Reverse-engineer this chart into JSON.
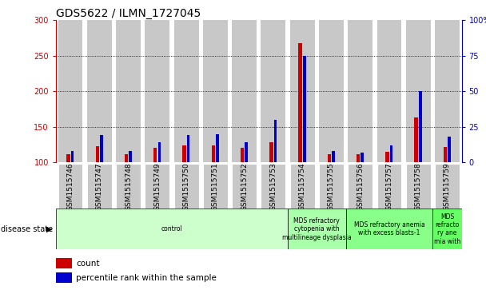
{
  "title": "GDS5622 / ILMN_1727045",
  "samples": [
    "GSM1515746",
    "GSM1515747",
    "GSM1515748",
    "GSM1515749",
    "GSM1515750",
    "GSM1515751",
    "GSM1515752",
    "GSM1515753",
    "GSM1515754",
    "GSM1515755",
    "GSM1515756",
    "GSM1515757",
    "GSM1515758",
    "GSM1515759"
  ],
  "count_values": [
    112,
    123,
    112,
    120,
    124,
    124,
    121,
    128,
    268,
    111,
    111,
    115,
    163,
    122
  ],
  "percentile_values": [
    8,
    19,
    8,
    14,
    19,
    20,
    14,
    30,
    75,
    8,
    7,
    12,
    50,
    18
  ],
  "ylim_left": [
    100,
    300
  ],
  "ylim_right": [
    0,
    100
  ],
  "yticks_left": [
    100,
    150,
    200,
    250,
    300
  ],
  "yticks_right": [
    0,
    25,
    50,
    75,
    100
  ],
  "ytick_right_labels": [
    "0",
    "25",
    "50",
    "75",
    "100%"
  ],
  "disease_groups": [
    {
      "label": "control",
      "start": 0,
      "end": 8
    },
    {
      "label": "MDS refractory\ncytopenia with\nmultilineage dysplasia",
      "start": 8,
      "end": 10
    },
    {
      "label": "MDS refractory anemia\nwith excess blasts-1",
      "start": 10,
      "end": 13
    },
    {
      "label": "MDS\nrefracto\nry ane\nmia with",
      "start": 13,
      "end": 14
    }
  ],
  "group_colors": [
    "#ccffcc",
    "#aaffaa",
    "#88ff88",
    "#66ff66"
  ],
  "count_color": "#cc0000",
  "percentile_color": "#0000cc",
  "bar_bg_color": "#c8c8c8",
  "disease_label": "disease state",
  "legend_count": "count",
  "legend_percentile": "percentile rank within the sample",
  "title_fontsize": 10,
  "tick_fontsize": 7,
  "label_fontsize": 7.5
}
